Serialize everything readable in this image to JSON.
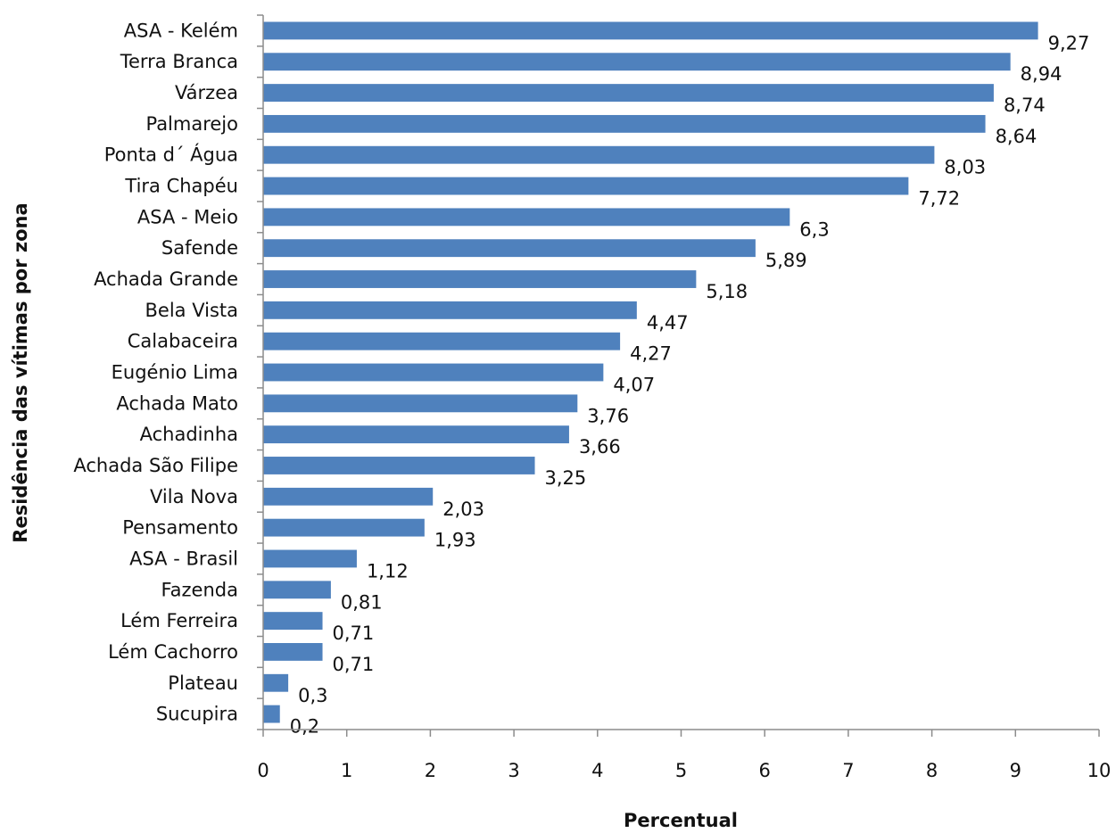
{
  "chart_data": {
    "type": "bar",
    "orientation": "horizontal",
    "title": "",
    "xlabel": "Percentual",
    "ylabel": "Residência das vítimas por zona",
    "xlim": [
      0,
      10
    ],
    "xticks": [
      "0",
      "1",
      "2",
      "3",
      "4",
      "5",
      "6",
      "7",
      "8",
      "9",
      "10"
    ],
    "grid": false,
    "legend": "none",
    "bar_color": "#4f81bd",
    "categories": [
      "ASA - Kelém",
      "Terra Branca",
      "Várzea",
      "Palmarejo",
      "Ponta d´ Água",
      "Tira Chapéu",
      "ASA - Meio",
      "Safende",
      "Achada Grande",
      "Bela Vista",
      "Calabaceira",
      "Eugénio Lima",
      "Achada Mato",
      "Achadinha",
      "Achada São Filipe",
      "Vila Nova",
      "Pensamento",
      "ASA - Brasil",
      "Fazenda",
      "Lém Ferreira",
      "Lém Cachorro",
      "Plateau",
      "Sucupira"
    ],
    "values": [
      9.27,
      8.94,
      8.74,
      8.64,
      8.03,
      7.72,
      6.3,
      5.89,
      5.18,
      4.47,
      4.27,
      4.07,
      3.76,
      3.66,
      3.25,
      2.03,
      1.93,
      1.12,
      0.81,
      0.71,
      0.71,
      0.3,
      0.2
    ],
    "value_labels": [
      "9,27",
      "8,94",
      "8,74",
      "8,64",
      "8,03",
      "7,72",
      "6,3",
      "5,89",
      "5,18",
      "4,47",
      "4,27",
      "4,07",
      "3,76",
      "3,66",
      "3,25",
      "2,03",
      "1,93",
      "1,12",
      "0,81",
      "0,71",
      "0,71",
      "0,3",
      "0,2"
    ]
  }
}
